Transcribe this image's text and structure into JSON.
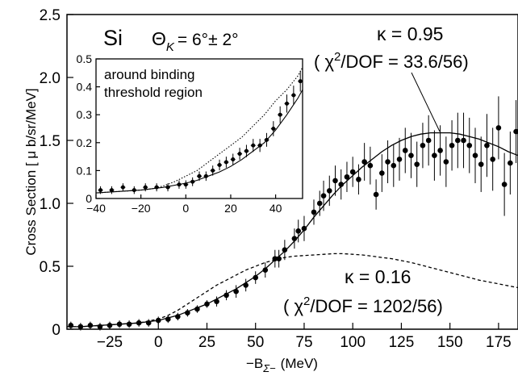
{
  "chart_data": [
    {
      "type": "scatter",
      "title": "",
      "xlabel": "−B",
      "xlabel_sub": "Σ−",
      "xlabel_unit": "(MeV)",
      "ylabel": "Cross Section [ μ b/sr/MeV]",
      "xlim": [
        -47,
        185
      ],
      "ylim": [
        0,
        2.5
      ],
      "x_ticks": [
        -25,
        0,
        25,
        50,
        75,
        100,
        125,
        150,
        175
      ],
      "y_ticks": [
        0,
        0.5,
        1.0,
        1.5,
        2.0,
        2.5
      ],
      "y_tick_labels": [
        "0",
        "0.5",
        "1.0",
        "1.5",
        "2.0",
        "2.5"
      ],
      "target_label": "Si",
      "angle_label": "Θ",
      "angle_sub": "K",
      "angle_value": "= 6°± 2°",
      "annotations": [
        {
          "kappa": "κ = 0.95",
          "chi_sym": "( χ",
          "chi_exp": "2",
          "chi_rest": "/DOF = 33.6/56)"
        },
        {
          "kappa": "κ = 0.16",
          "chi_sym": "( χ",
          "chi_exp": "2",
          "chi_rest": "/DOF = 1202/56)"
        }
      ],
      "series": [
        {
          "style": "data points with error bars",
          "x": [
            -45,
            -40,
            -35,
            -30,
            -25,
            -20,
            -15,
            -10,
            -5,
            0,
            5,
            10,
            15,
            20,
            25,
            30,
            35,
            40,
            45,
            50,
            55,
            60,
            62,
            65,
            70,
            72,
            75,
            80,
            83,
            85,
            88,
            91,
            94,
            97,
            100,
            103,
            106,
            109,
            112,
            115,
            118,
            121,
            124,
            127,
            130,
            133,
            136,
            139,
            142,
            145,
            148,
            151,
            154,
            157,
            160,
            163,
            166,
            169,
            172,
            175,
            178,
            181,
            184
          ],
          "y": [
            0.03,
            0.02,
            0.03,
            0.02,
            0.03,
            0.04,
            0.04,
            0.05,
            0.05,
            0.07,
            0.08,
            0.1,
            0.13,
            0.16,
            0.2,
            0.22,
            0.27,
            0.3,
            0.35,
            0.41,
            0.47,
            0.56,
            0.56,
            0.63,
            0.72,
            0.78,
            0.8,
            0.93,
            1.0,
            1.06,
            1.1,
            1.18,
            1.15,
            1.21,
            1.25,
            1.19,
            1.33,
            1.3,
            1.07,
            1.24,
            1.33,
            1.3,
            1.35,
            1.42,
            1.38,
            1.31,
            1.46,
            1.5,
            1.38,
            1.42,
            1.33,
            1.46,
            1.5,
            1.5,
            1.46,
            1.38,
            1.31,
            1.46,
            1.35,
            1.6,
            1.15,
            1.32,
            1.57
          ],
          "yerr": [
            0.03,
            0.03,
            0.03,
            0.03,
            0.03,
            0.03,
            0.03,
            0.03,
            0.03,
            0.03,
            0.03,
            0.03,
            0.03,
            0.03,
            0.03,
            0.04,
            0.04,
            0.05,
            0.05,
            0.05,
            0.06,
            0.07,
            0.07,
            0.08,
            0.08,
            0.09,
            0.1,
            0.1,
            0.1,
            0.12,
            0.12,
            0.12,
            0.12,
            0.12,
            0.12,
            0.12,
            0.15,
            0.15,
            0.12,
            0.15,
            0.17,
            0.17,
            0.17,
            0.18,
            0.18,
            0.18,
            0.18,
            0.2,
            0.2,
            0.2,
            0.2,
            0.2,
            0.22,
            0.22,
            0.22,
            0.22,
            0.22,
            0.25,
            0.25,
            0.25,
            0.25,
            0.25,
            0.25
          ]
        },
        {
          "style": "solid fit curve",
          "x": [
            -47,
            -40,
            -30,
            -20,
            -10,
            -5,
            0,
            5,
            10,
            15,
            20,
            25,
            30,
            35,
            40,
            45,
            50,
            55,
            60,
            65,
            70,
            75,
            80,
            85,
            90,
            95,
            100,
            105,
            110,
            115,
            120,
            125,
            130,
            135,
            140,
            145,
            150,
            155,
            160,
            165,
            170,
            175,
            180,
            185
          ],
          "y": [
            0.02,
            0.02,
            0.03,
            0.04,
            0.05,
            0.06,
            0.07,
            0.09,
            0.11,
            0.14,
            0.17,
            0.2,
            0.24,
            0.28,
            0.32,
            0.37,
            0.42,
            0.48,
            0.55,
            0.62,
            0.7,
            0.79,
            0.89,
            0.98,
            1.07,
            1.15,
            1.22,
            1.29,
            1.35,
            1.41,
            1.46,
            1.5,
            1.53,
            1.55,
            1.56,
            1.56,
            1.56,
            1.55,
            1.53,
            1.51,
            1.48,
            1.45,
            1.41,
            1.38
          ]
        },
        {
          "style": "dashed fit curve",
          "x": [
            -47,
            -40,
            -30,
            -20,
            -10,
            0,
            5,
            10,
            15,
            20,
            25,
            30,
            35,
            40,
            45,
            50,
            55,
            60,
            65,
            70,
            75,
            80,
            85,
            90,
            95,
            100,
            105,
            110,
            115,
            120,
            125,
            130,
            135,
            140,
            145,
            150,
            155,
            160,
            165,
            170,
            175,
            180,
            185
          ],
          "y": [
            0.02,
            0.02,
            0.03,
            0.04,
            0.05,
            0.08,
            0.11,
            0.15,
            0.2,
            0.25,
            0.3,
            0.35,
            0.39,
            0.43,
            0.47,
            0.5,
            0.53,
            0.55,
            0.57,
            0.58,
            0.585,
            0.59,
            0.595,
            0.6,
            0.6,
            0.595,
            0.59,
            0.58,
            0.57,
            0.56,
            0.545,
            0.53,
            0.51,
            0.49,
            0.47,
            0.45,
            0.43,
            0.41,
            0.39,
            0.375,
            0.36,
            0.345,
            0.33
          ]
        }
      ]
    },
    {
      "type": "scatter",
      "title": "",
      "annotation_lines": [
        "around binding",
        "threshold region"
      ],
      "xlim": [
        -40,
        52
      ],
      "ylim": [
        0,
        0.5
      ],
      "x_ticks": [
        -40,
        -20,
        0,
        20,
        40
      ],
      "y_ticks": [
        0,
        0.1,
        0.2,
        0.3,
        0.4,
        0.5
      ],
      "y_tick_labels": [
        "0",
        "0.1",
        "0.2",
        "0.3",
        "0.4",
        "0.5"
      ],
      "series": [
        {
          "style": "data points with error bars",
          "x": [
            -38,
            -33,
            -28,
            -23,
            -18,
            -13,
            -8,
            -3,
            0,
            3,
            6,
            9,
            12,
            15,
            18,
            21,
            24,
            27,
            30,
            33,
            36,
            39,
            42,
            45,
            48,
            51
          ],
          "y": [
            0.03,
            0.03,
            0.04,
            0.03,
            0.04,
            0.04,
            0.04,
            0.05,
            0.05,
            0.06,
            0.08,
            0.08,
            0.1,
            0.12,
            0.13,
            0.14,
            0.16,
            0.17,
            0.19,
            0.19,
            0.21,
            0.25,
            0.3,
            0.34,
            0.37,
            0.42
          ]
        },
        {
          "style": "solid fit curve",
          "x": [
            -40,
            -30,
            -20,
            -10,
            0,
            5,
            10,
            15,
            20,
            25,
            30,
            35,
            40,
            45,
            50,
            52
          ],
          "y": [
            0.02,
            0.025,
            0.03,
            0.04,
            0.055,
            0.065,
            0.08,
            0.095,
            0.115,
            0.14,
            0.17,
            0.2,
            0.245,
            0.3,
            0.36,
            0.39
          ]
        },
        {
          "style": "dotted fit curve",
          "x": [
            -40,
            -30,
            -20,
            -15,
            -10,
            -5,
            0,
            5,
            10,
            15,
            20,
            25,
            30,
            35,
            40,
            45,
            50,
            52
          ],
          "y": [
            0.02,
            0.025,
            0.03,
            0.035,
            0.045,
            0.06,
            0.08,
            0.1,
            0.13,
            0.16,
            0.19,
            0.22,
            0.26,
            0.3,
            0.35,
            0.39,
            0.44,
            0.47
          ]
        }
      ]
    }
  ]
}
